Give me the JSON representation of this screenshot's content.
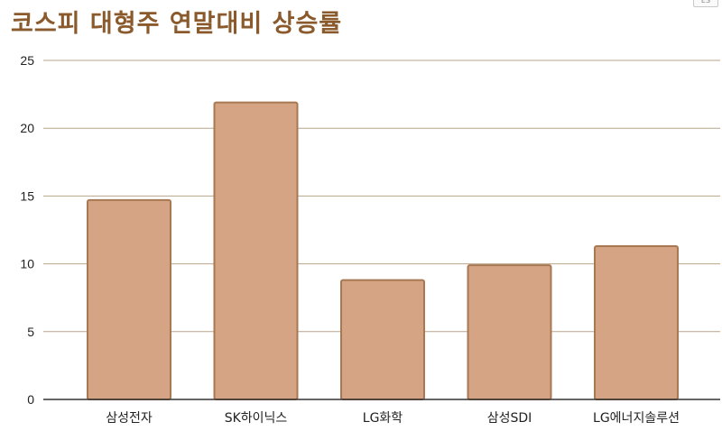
{
  "colors": {
    "title": "#8a5a2c",
    "bar_fill": "#d4a484",
    "bar_stroke": "#a87852",
    "grid": "#b9a48a",
    "axis": "#333333"
  },
  "corner_tab": "ES",
  "chart_data": {
    "type": "bar",
    "title": "코스피 대형주 연말대비 상승률",
    "xlabel": "",
    "ylabel": "",
    "categories": [
      "삼성전자",
      "SK하이닉스",
      "LG화학",
      "삼성SDI",
      "LG에너지솔루션"
    ],
    "values": [
      14.7,
      21.9,
      8.8,
      9.9,
      11.3
    ],
    "ylim": [
      0,
      25
    ],
    "yticks": [
      0,
      5,
      10,
      15,
      20,
      25
    ],
    "grid": true,
    "legend": "none"
  }
}
